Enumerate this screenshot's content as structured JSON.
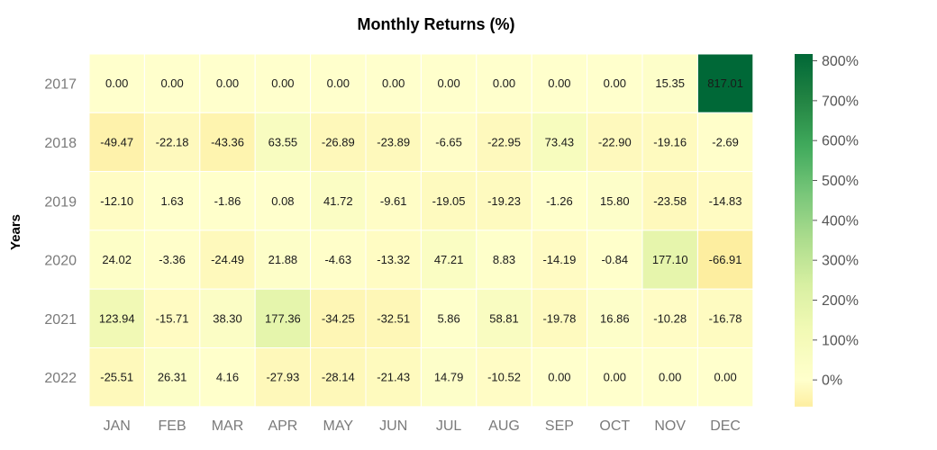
{
  "chart_data": {
    "type": "heatmap",
    "title": "Monthly Returns (%)",
    "ylabel": "Years",
    "xlabel": "",
    "x_categories": [
      "JAN",
      "FEB",
      "MAR",
      "APR",
      "MAY",
      "JUN",
      "JUL",
      "AUG",
      "SEP",
      "OCT",
      "NOV",
      "DEC"
    ],
    "y_categories": [
      "2017",
      "2018",
      "2019",
      "2020",
      "2021",
      "2022"
    ],
    "values": [
      [
        0.0,
        0.0,
        0.0,
        0.0,
        0.0,
        0.0,
        0.0,
        0.0,
        0.0,
        0.0,
        15.35,
        817.01
      ],
      [
        -49.47,
        -22.18,
        -43.36,
        63.55,
        -26.89,
        -23.89,
        -6.65,
        -22.95,
        73.43,
        -22.9,
        -19.16,
        -2.69
      ],
      [
        -12.1,
        1.63,
        -1.86,
        0.08,
        41.72,
        -9.61,
        -19.05,
        -19.23,
        -1.26,
        15.8,
        -23.58,
        -14.83
      ],
      [
        24.02,
        -3.36,
        -24.49,
        21.88,
        -4.63,
        -13.32,
        47.21,
        8.83,
        -14.19,
        -0.84,
        177.1,
        -66.91
      ],
      [
        123.94,
        -15.71,
        38.3,
        177.36,
        -34.25,
        -32.51,
        5.86,
        58.81,
        -19.78,
        16.86,
        -10.28,
        -16.78
      ],
      [
        -25.51,
        26.31,
        4.16,
        -27.93,
        -28.14,
        -21.43,
        14.79,
        -10.52,
        0.0,
        0.0,
        0.0,
        0.0
      ]
    ],
    "cell_labels": [
      [
        "0.00",
        "0.00",
        "0.00",
        "0.00",
        "0.00",
        "0.00",
        "0.00",
        "0.00",
        "0.00",
        "0.00",
        "15.35",
        "817.01"
      ],
      [
        "-49.47",
        "-22.18",
        "-43.36",
        "63.55",
        "-26.89",
        "-23.89",
        "-6.65",
        "-22.95",
        "73.43",
        "-22.90",
        "-19.16",
        "-2.69"
      ],
      [
        "-12.10",
        "1.63",
        "-1.86",
        "0.08",
        "41.72",
        "-9.61",
        "-19.05",
        "-19.23",
        "-1.26",
        "15.80",
        "-23.58",
        "-14.83"
      ],
      [
        "24.02",
        "-3.36",
        "-24.49",
        "21.88",
        "-4.63",
        "-13.32",
        "47.21",
        "8.83",
        "-14.19",
        "-0.84",
        "177.10",
        "-66.91"
      ],
      [
        "123.94",
        "-15.71",
        "38.30",
        "177.36",
        "-34.25",
        "-32.51",
        "5.86",
        "58.81",
        "-19.78",
        "16.86",
        "-10.28",
        "-16.78"
      ],
      [
        "-25.51",
        "26.31",
        "4.16",
        "-27.93",
        "-28.14",
        "-21.43",
        "14.79",
        "-10.52",
        "0.00",
        "0.00",
        "0.00",
        "0.00"
      ]
    ],
    "colorbar": {
      "range": [
        -66.91,
        817.01
      ],
      "ticks": [
        0,
        100,
        200,
        300,
        400,
        500,
        600,
        700,
        800
      ],
      "tick_labels": [
        "0%",
        "100%",
        "200%",
        "300%",
        "400%",
        "500%",
        "600%",
        "700%",
        "800%"
      ],
      "position": "right"
    },
    "colormap": {
      "name": "RdYlGn",
      "center": 0,
      "stops": [
        "#fdeea0",
        "#ffffcc",
        "#f3fab6",
        "#d9f0a3",
        "#addd8e",
        "#78c679",
        "#41ab5d",
        "#238443",
        "#006837"
      ]
    },
    "grid": false
  }
}
